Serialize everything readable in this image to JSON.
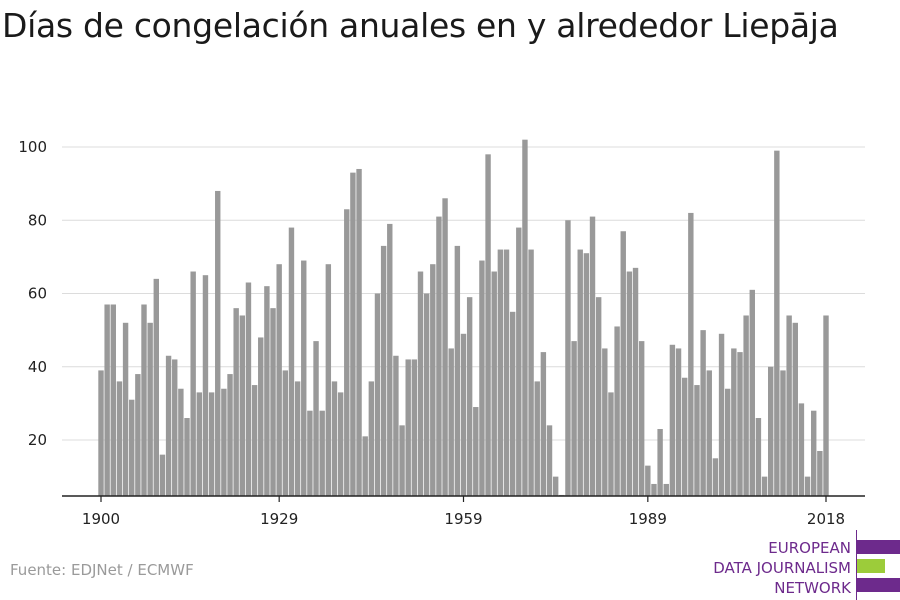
{
  "title": "Días de congelación anuales en y alrededor Liepāja",
  "source": "Fuente: EDJNet / ECMWF",
  "logo": {
    "lines": [
      "EUROPEAN",
      "DATA JOURNALISM",
      "NETWORK"
    ],
    "colors": {
      "purple": "#6d2a8c",
      "green": "#9ccc3a"
    }
  },
  "chart_data": {
    "type": "bar",
    "title": "Días de congelación anuales en y alrededor Liepāja",
    "xlabel": "",
    "ylabel": "",
    "x_start": 1900,
    "x_end": 2018,
    "xticks": [
      "1900",
      "1929",
      "1959",
      "1989",
      "2018"
    ],
    "yticks": [
      "20",
      "40",
      "60",
      "80",
      "100"
    ],
    "ylim": [
      5,
      103
    ],
    "grid": true,
    "bar_color": "#999999",
    "x": [
      1900,
      1901,
      1902,
      1903,
      1904,
      1905,
      1906,
      1907,
      1908,
      1909,
      1910,
      1911,
      1912,
      1913,
      1914,
      1915,
      1916,
      1917,
      1918,
      1919,
      1920,
      1921,
      1922,
      1923,
      1924,
      1925,
      1926,
      1927,
      1928,
      1929,
      1930,
      1931,
      1932,
      1933,
      1934,
      1935,
      1936,
      1937,
      1938,
      1939,
      1940,
      1941,
      1942,
      1943,
      1944,
      1945,
      1946,
      1947,
      1948,
      1949,
      1950,
      1951,
      1952,
      1953,
      1954,
      1955,
      1956,
      1957,
      1958,
      1959,
      1960,
      1961,
      1962,
      1963,
      1964,
      1965,
      1966,
      1967,
      1968,
      1969,
      1970,
      1971,
      1972,
      1973,
      1974,
      1975,
      1976,
      1977,
      1978,
      1979,
      1980,
      1981,
      1982,
      1983,
      1984,
      1985,
      1986,
      1987,
      1988,
      1989,
      1990,
      1991,
      1992,
      1993,
      1994,
      1995,
      1996,
      1997,
      1998,
      1999,
      2000,
      2001,
      2002,
      2003,
      2004,
      2005,
      2006,
      2007,
      2008,
      2009,
      2010,
      2011,
      2012,
      2013,
      2014,
      2015,
      2016,
      2017,
      2018
    ],
    "values": [
      39,
      57,
      57,
      36,
      52,
      31,
      38,
      57,
      52,
      64,
      16,
      43,
      42,
      34,
      26,
      66,
      33,
      65,
      33,
      88,
      34,
      38,
      56,
      54,
      63,
      35,
      48,
      62,
      56,
      68,
      39,
      78,
      36,
      69,
      28,
      47,
      28,
      68,
      36,
      33,
      83,
      93,
      94,
      21,
      36,
      60,
      73,
      79,
      43,
      24,
      42,
      42,
      66,
      60,
      68,
      81,
      86,
      45,
      73,
      49,
      59,
      29,
      69,
      98,
      66,
      72,
      72,
      55,
      78,
      102,
      72,
      36,
      44,
      24,
      10,
      5,
      80,
      47,
      72,
      71,
      81,
      59,
      45,
      33,
      51,
      77,
      66,
      67,
      47,
      13,
      8,
      23,
      8,
      46,
      45,
      37,
      82,
      35,
      50,
      39,
      15,
      49,
      34,
      45,
      44,
      54,
      61,
      26,
      10,
      40,
      99,
      39,
      54,
      52,
      30,
      10,
      28,
      17,
      54
    ]
  }
}
